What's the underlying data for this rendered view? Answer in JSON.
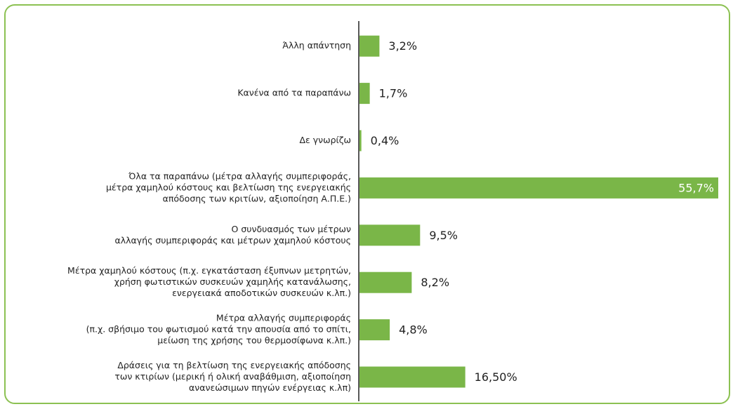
{
  "chart_data": {
    "type": "barh",
    "categories": [
      [
        "Άλλη απάντηση"
      ],
      [
        "Κανένα από τα παραπάνω"
      ],
      [
        "Δε γνωρίζω"
      ],
      [
        "Όλα τα παραπάνω (μέτρα αλλαγής συμπεριφοράς,",
        "μέτρα χαμηλού κόστους και βελτίωση της ενεργειακής",
        "απόδοσης των κριτίων, αξιοποίηση Α.Π.Ε.)"
      ],
      [
        "Ο συνδυασμός των μέτρων",
        "αλλαγής συμπεριφοράς και μέτρων χαμηλού κόστους"
      ],
      [
        "Μέτρα χαμηλού κόστους (π.χ. εγκατάσταση έξυπνων μετρητών,",
        "χρήση φωτιστικών συσκευών χαμηλής κατανάλωσης,",
        "ενεργειακά αποδοτικών συσκευών κ.λπ.)"
      ],
      [
        "Μέτρα αλλαγής συμπεριφοράς",
        "(π.χ. σβήσιμο του φωτισμού κατά την απουσία από το σπίτι,",
        "μείωση της χρήσης του θερμοσίφωνα κ.λπ.)"
      ],
      [
        "Δράσεις για τη βελτίωση της ενεργειακής απόδοσης",
        "των κτιρίων (μερική ή ολική αναβάθμιση, αξιοποίηση",
        "ανανεώσιμων πηγών ενέργειας κ.λπ)"
      ]
    ],
    "values": [
      3.2,
      1.7,
      0.4,
      55.7,
      9.5,
      8.2,
      4.8,
      16.5
    ],
    "value_labels": [
      "3,2%",
      "1,7%",
      "0,4%",
      "55,7%",
      "9,5%",
      "8,2%",
      "4,8%",
      "16,50%"
    ],
    "color": "#7ab648"
  }
}
